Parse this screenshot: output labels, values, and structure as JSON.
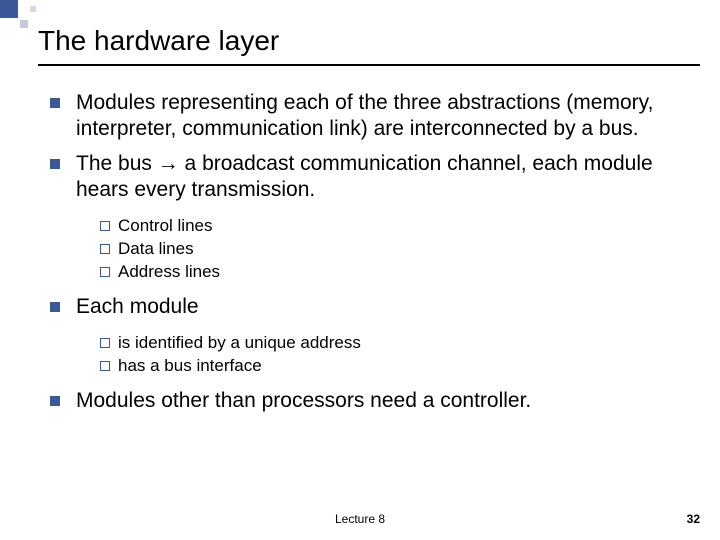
{
  "title": "The hardware layer",
  "bullets": {
    "b1": "Modules representing each of the three abstractions (memory, interpreter, communication link) are interconnected by a bus.",
    "b2_pre": "The bus ",
    "b2_arrow": "→",
    "b2_post": " a broadcast communication channel, each module hears every transmission.",
    "b2_sub": {
      "s1": "Control lines",
      "s2": "Data lines",
      "s3": "Address lines"
    },
    "b3": "Each module",
    "b3_sub": {
      "s1": "is identified by a unique address",
      "s2": "has a bus interface"
    },
    "b4": "Modules other than processors need a controller."
  },
  "footer": "Lecture 8",
  "page_number": "32",
  "colors": {
    "bullet_fill": "#3b5998",
    "text": "#000000",
    "background": "#ffffff"
  },
  "typography": {
    "title_fontsize": 28,
    "level1_fontsize": 21,
    "level2_fontsize": 17,
    "footer_fontsize": 12,
    "font_family": "Arial"
  }
}
